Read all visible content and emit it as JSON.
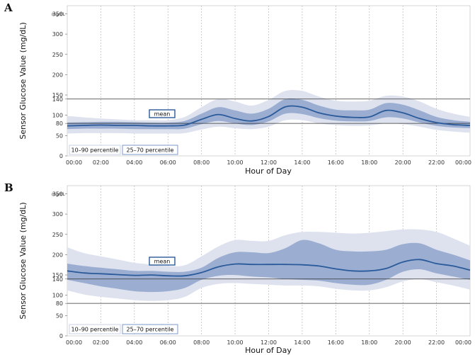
{
  "chart_data": [
    {
      "type": "line",
      "panel": "A",
      "title": "",
      "xlabel": "Hour of Day",
      "ylabel": "Sensor Glucose Value (mg/dL)",
      "y_unit_label": "mg/dL",
      "ylim": [
        0,
        370
      ],
      "xlim": [
        0,
        24
      ],
      "y_ticks": [
        "0",
        "50",
        "80",
        "100",
        "140",
        "150",
        "200",
        "250",
        "300",
        "350"
      ],
      "x_ticks": [
        "00:00",
        "02:00",
        "04:00",
        "06:00",
        "08:00",
        "10:00",
        "12:00",
        "14:00",
        "16:00",
        "18:00",
        "20:00",
        "22:00",
        "00:00"
      ],
      "reference_lines": [
        80,
        140
      ],
      "x": [
        0,
        1,
        2,
        3,
        4,
        5,
        6,
        7,
        8,
        9,
        10,
        11,
        12,
        13,
        14,
        15,
        16,
        17,
        18,
        19,
        20,
        21,
        22,
        23,
        24
      ],
      "series": [
        {
          "name": "mean",
          "values": [
            74,
            75,
            76,
            75,
            75,
            74,
            74,
            76,
            90,
            102,
            92,
            86,
            97,
            121,
            120,
            106,
            98,
            95,
            96,
            112,
            106,
            92,
            82,
            77,
            75
          ]
        },
        {
          "name": "25–70 percentile",
          "lower": [
            66,
            67,
            67,
            67,
            66,
            66,
            66,
            67,
            78,
            86,
            80,
            76,
            85,
            104,
            103,
            93,
            87,
            85,
            86,
            95,
            92,
            82,
            74,
            70,
            68
          ],
          "upper": [
            82,
            83,
            84,
            84,
            83,
            82,
            82,
            86,
            104,
            120,
            112,
            104,
            116,
            140,
            138,
            124,
            114,
            112,
            114,
            130,
            126,
            112,
            96,
            88,
            84
          ]
        },
        {
          "name": "10–90 percentile",
          "lower": [
            55,
            56,
            56,
            56,
            55,
            55,
            55,
            56,
            65,
            72,
            68,
            66,
            72,
            88,
            88,
            80,
            76,
            74,
            75,
            80,
            78,
            72,
            64,
            60,
            57
          ],
          "upper": [
            98,
            95,
            92,
            90,
            88,
            88,
            88,
            96,
            120,
            140,
            134,
            124,
            138,
            160,
            160,
            146,
            136,
            134,
            136,
            148,
            146,
            134,
            116,
            104,
            96
          ]
        }
      ]
    },
    {
      "type": "line",
      "panel": "B",
      "title": "",
      "xlabel": "Hour of Day",
      "ylabel": "Sensor Glucose Value (mg/dL)",
      "y_unit_label": "mg/dL",
      "ylim": [
        0,
        370
      ],
      "xlim": [
        0,
        24
      ],
      "y_ticks": [
        "0",
        "50",
        "80",
        "100",
        "140",
        "150",
        "200",
        "250",
        "300",
        "350"
      ],
      "x_ticks": [
        "00:00",
        "02:00",
        "04:00",
        "06:00",
        "08:00",
        "10:00",
        "12:00",
        "14:00",
        "16:00",
        "18:00",
        "20:00",
        "22:00",
        "00:00"
      ],
      "reference_lines": [
        80,
        140
      ],
      "x": [
        0,
        1,
        2,
        3,
        4,
        5,
        6,
        7,
        8,
        9,
        10,
        11,
        12,
        13,
        14,
        15,
        16,
        17,
        18,
        19,
        20,
        21,
        22,
        23,
        24
      ],
      "series": [
        {
          "name": "mean",
          "values": [
            160,
            155,
            153,
            151,
            149,
            150,
            148,
            148,
            156,
            170,
            177,
            176,
            176,
            176,
            175,
            172,
            165,
            160,
            160,
            166,
            182,
            188,
            178,
            172,
            162
          ]
        },
        {
          "name": "25–70 percentile",
          "lower": [
            138,
            130,
            122,
            116,
            110,
            108,
            110,
            118,
            138,
            148,
            150,
            146,
            144,
            140,
            138,
            136,
            130,
            126,
            126,
            138,
            158,
            164,
            154,
            146,
            138
          ],
          "upper": [
            178,
            172,
            168,
            164,
            160,
            160,
            158,
            158,
            168,
            192,
            206,
            206,
            204,
            216,
            236,
            228,
            212,
            208,
            208,
            212,
            226,
            228,
            212,
            200,
            186
          ]
        },
        {
          "name": "10–90 percentile",
          "lower": [
            112,
            102,
            96,
            92,
            88,
            86,
            88,
            96,
            118,
            128,
            130,
            128,
            126,
            124,
            124,
            122,
            116,
            112,
            112,
            120,
            134,
            140,
            132,
            124,
            114
          ]
        },
        {
          "name": "10–90 percentile",
          "upper": [
            218,
            204,
            196,
            188,
            180,
            176,
            172,
            174,
            196,
            220,
            236,
            234,
            234,
            248,
            256,
            256,
            254,
            252,
            254,
            258,
            262,
            262,
            256,
            240,
            222
          ]
        }
      ]
    }
  ]
}
